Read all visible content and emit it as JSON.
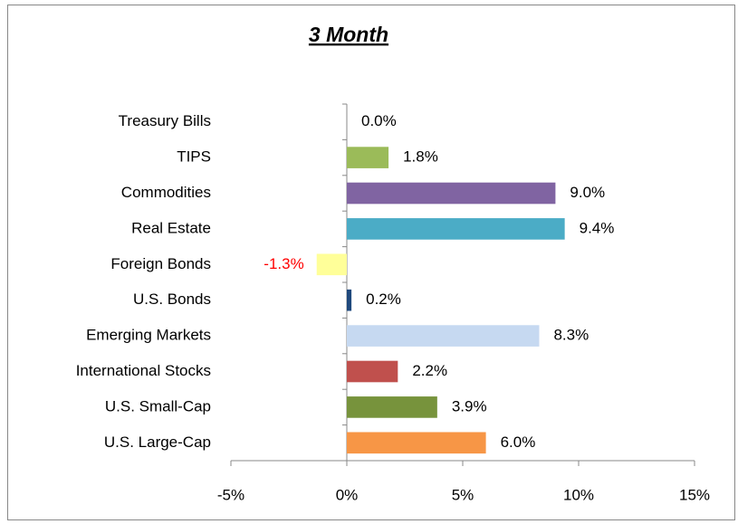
{
  "chart_data": {
    "type": "barh",
    "title": "3 Month",
    "categories": [
      "Treasury Bills",
      "TIPS",
      "Commodities",
      "Real Estate",
      "Foreign Bonds",
      "U.S. Bonds",
      "Emerging Markets",
      "International Stocks",
      "U.S. Small-Cap",
      "U.S. Large-Cap"
    ],
    "values": [
      0.0,
      1.8,
      9.0,
      9.4,
      -1.3,
      0.2,
      8.3,
      2.2,
      3.9,
      6.0
    ],
    "value_labels": [
      "0.0%",
      "1.8%",
      "9.0%",
      "9.4%",
      "-1.3%",
      "0.2%",
      "8.3%",
      "2.2%",
      "3.9%",
      "6.0%"
    ],
    "colors": [
      "#4f81bd",
      "#9bbb59",
      "#8064a2",
      "#4bacc6",
      "#ffff99",
      "#1f497d",
      "#c6d9f1",
      "#c0504d",
      "#77933c",
      "#f79646"
    ],
    "negative_label_color": "#ff0000",
    "xlim": [
      -5,
      15
    ],
    "xticks": [
      {
        "value": -5,
        "label": "-5%"
      },
      {
        "value": 0,
        "label": "0%"
      },
      {
        "value": 5,
        "label": "5%"
      },
      {
        "value": 10,
        "label": "10%"
      },
      {
        "value": 15,
        "label": "15%"
      }
    ]
  }
}
